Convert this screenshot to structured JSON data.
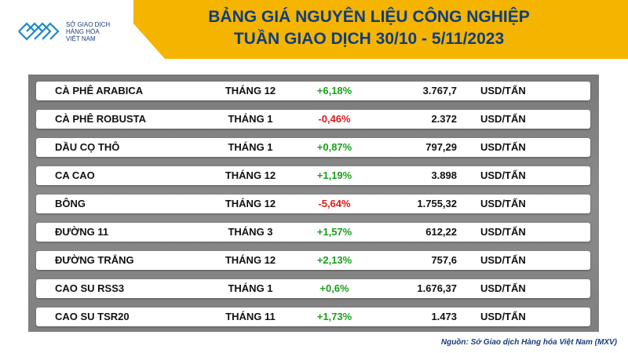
{
  "logo": {
    "line1": "SỞ GIAO DỊCH",
    "line2": "HÀNG HÓA",
    "line3": "VIỆT NAM",
    "color": "#1e88c8"
  },
  "title": {
    "line1": "BẢNG GIÁ NGUYÊN LIỆU CÔNG NGHIỆP",
    "line2": "TUẦN GIAO DỊCH 30/10 - 5/11/2023"
  },
  "rows": [
    {
      "name": "CÀ PHÊ ARABICA",
      "month": "THÁNG 12",
      "change": "+6,18%",
      "direction": "up",
      "price": "3.767,7",
      "unit": "USD/TẤN"
    },
    {
      "name": "CÀ PHÊ ROBUSTA",
      "month": "THÁNG 1",
      "change": "-0,46%",
      "direction": "down",
      "price": "2.372",
      "unit": "USD/TẤN"
    },
    {
      "name": "DẦU CỌ THÔ",
      "month": "THÁNG 1",
      "change": "+0,87%",
      "direction": "up",
      "price": "797,29",
      "unit": "USD/TẤN"
    },
    {
      "name": "CA CAO",
      "month": "THÁNG 12",
      "change": "+1,19%",
      "direction": "up",
      "price": "3.898",
      "unit": "USD/TẤN"
    },
    {
      "name": "BÔNG",
      "month": "THÁNG 12",
      "change": "-5,64%",
      "direction": "down",
      "price": "1.755,32",
      "unit": "USD/TẤN"
    },
    {
      "name": "ĐƯỜNG 11",
      "month": "THÁNG 3",
      "change": "+1,57%",
      "direction": "up",
      "price": "612,22",
      "unit": "USD/TẤN"
    },
    {
      "name": "ĐƯỜNG TRẮNG",
      "month": "THÁNG 12",
      "change": "+2,13%",
      "direction": "up",
      "price": "757,6",
      "unit": "USD/TẤN"
    },
    {
      "name": "CAO SU RSS3",
      "month": "THÁNG 1",
      "change": "+0,6%",
      "direction": "up",
      "price": "1.676,37",
      "unit": "USD/TẤN"
    },
    {
      "name": "CAO SU TSR20",
      "month": "THÁNG 11",
      "change": "+1,73%",
      "direction": "up",
      "price": "1.473",
      "unit": "USD/TẤN"
    }
  ],
  "source": "Nguồn: Sở Giao dịch Hàng hóa Việt Nam (MXV)",
  "colors": {
    "header": "#f4b400",
    "title": "#0f3d7c",
    "up": "#19a019",
    "down": "#e01818"
  }
}
